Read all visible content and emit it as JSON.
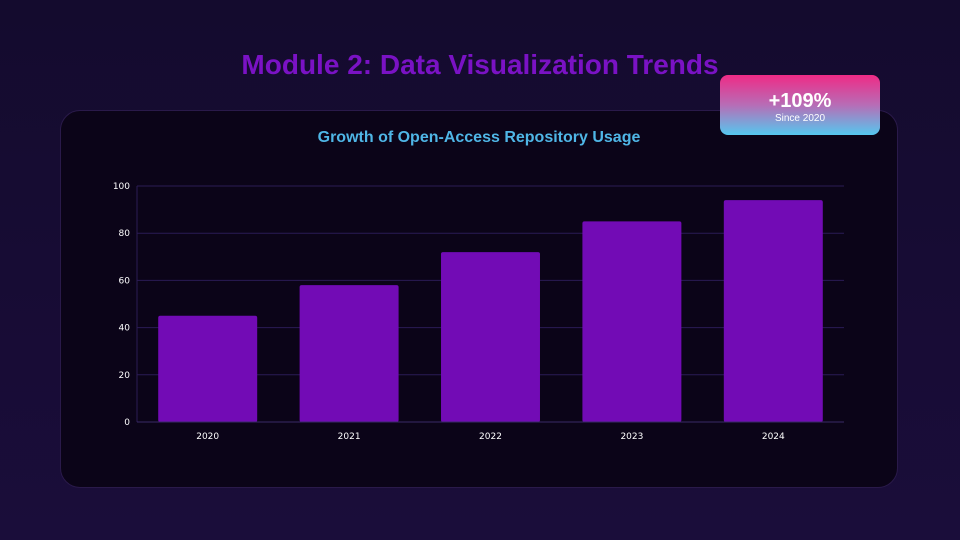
{
  "slide": {
    "title": "Module 2: Data Visualization Trends"
  },
  "stat_badge": {
    "value": "+109%",
    "caption": "Since 2020"
  },
  "colors": {
    "bar": "#720bb5",
    "grid": "#2b1b55",
    "tick_text": "#ffffff"
  },
  "chart_data": {
    "type": "bar",
    "title": "Growth of Open-Access Repository Usage",
    "categories": [
      "2020",
      "2021",
      "2022",
      "2023",
      "2024"
    ],
    "values": [
      45,
      58,
      72,
      85,
      94
    ],
    "xlabel": "",
    "ylabel": "",
    "ylim": [
      0,
      100
    ],
    "yticks": [
      0,
      20,
      40,
      60,
      80,
      100
    ],
    "grid": true,
    "legend": "none"
  }
}
